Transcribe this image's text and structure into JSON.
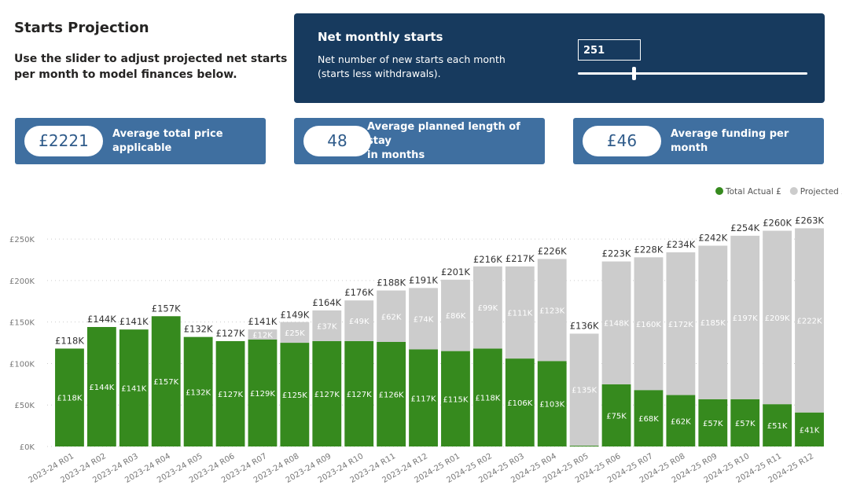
{
  "header": {
    "title": "Starts Projection",
    "subtitle_lines": [
      "Use the slider to adjust projected net starts",
      "per month to model finances below."
    ]
  },
  "slider_panel": {
    "title": "Net monthly starts",
    "description_lines": [
      "Net number of new starts each month",
      "(starts less withdrawals)."
    ],
    "value": "251"
  },
  "cards": [
    {
      "value": "£2221",
      "label_lines": [
        "Average total price applicable"
      ]
    },
    {
      "value": "48",
      "label_lines": [
        "Average planned length of stay",
        "in months"
      ]
    },
    {
      "value": "£46",
      "label_lines": [
        "Average funding per month"
      ]
    }
  ],
  "chart_data": {
    "type": "stacked-bar",
    "categories": [
      "2023-24 R01",
      "2023-24 R02",
      "2023-24 R03",
      "2023-24 R04",
      "2023-24 R05",
      "2023-24 R06",
      "2023-24 R07",
      "2023-24 R08",
      "2023-24 R09",
      "2023-24 R10",
      "2023-24 R11",
      "2023-24 R12",
      "2024-25 R01",
      "2024-25 R02",
      "2024-25 R03",
      "2024-25 R04",
      "2024-25 R05",
      "2024-25 R06",
      "2024-25 R07",
      "2024-25 R08",
      "2024-25 R09",
      "2024-25 R10",
      "2024-25 R11",
      "2024-25 R12"
    ],
    "series": [
      {
        "name": "Total Actual £",
        "color": "#368a1e",
        "values": [
          118000,
          144000,
          141000,
          157000,
          132000,
          127000,
          129000,
          125000,
          127000,
          127000,
          126000,
          117000,
          115000,
          118000,
          106000,
          103000,
          1000,
          75000,
          68000,
          62000,
          57000,
          57000,
          51000,
          41000
        ],
        "value_labels": [
          "£118K",
          "£144K",
          "£141K",
          "£157K",
          "£132K",
          "£127K",
          "£129K",
          "£125K",
          "£127K",
          "£127K",
          "£126K",
          "£117K",
          "£115K",
          "£118K",
          "£106K",
          "£103K",
          null,
          "£75K",
          "£68K",
          "£62K",
          "£57K",
          "£57K",
          "£51K",
          "£41K"
        ]
      },
      {
        "name": "Projected £",
        "color": "#cccccc",
        "values": [
          null,
          null,
          null,
          null,
          null,
          null,
          12000,
          25000,
          37000,
          49000,
          62000,
          74000,
          86000,
          99000,
          111000,
          123000,
          135000,
          148000,
          160000,
          172000,
          185000,
          197000,
          209000,
          222000
        ],
        "value_labels": [
          null,
          null,
          null,
          null,
          null,
          null,
          "£12K",
          "£25K",
          "£37K",
          "£49K",
          "£62K",
          "£74K",
          "£86K",
          "£99K",
          "£111K",
          "£123K",
          "£135K",
          "£148K",
          "£160K",
          "£172K",
          "£185K",
          "£197K",
          "£209K",
          "£222K"
        ]
      }
    ],
    "totals": {
      "values": [
        118000,
        144000,
        141000,
        157000,
        132000,
        127000,
        141000,
        149000,
        164000,
        176000,
        188000,
        191000,
        201000,
        216000,
        217000,
        226000,
        136000,
        223000,
        228000,
        234000,
        242000,
        254000,
        260000,
        263000
      ],
      "value_labels": [
        "£118K",
        "£144K",
        "£141K",
        "£157K",
        "£132K",
        "£127K",
        "£141K",
        "£149K",
        "£164K",
        "£176K",
        "£188K",
        "£191K",
        "£201K",
        "£216K",
        "£217K",
        "£226K",
        "£136K",
        "£223K",
        "£228K",
        "£234K",
        "£242K",
        "£254K",
        "£260K",
        "£263K"
      ]
    },
    "ylim": [
      0,
      270000
    ],
    "yticks": [
      {
        "value": 0,
        "label": "£0K"
      },
      {
        "value": 50000,
        "label": "£50K"
      },
      {
        "value": 100000,
        "label": "£100K"
      },
      {
        "value": 150000,
        "label": "£150K"
      },
      {
        "value": 200000,
        "label": "£200K"
      },
      {
        "value": 250000,
        "label": "£250K"
      }
    ],
    "grid": true,
    "legend": "top-right"
  }
}
